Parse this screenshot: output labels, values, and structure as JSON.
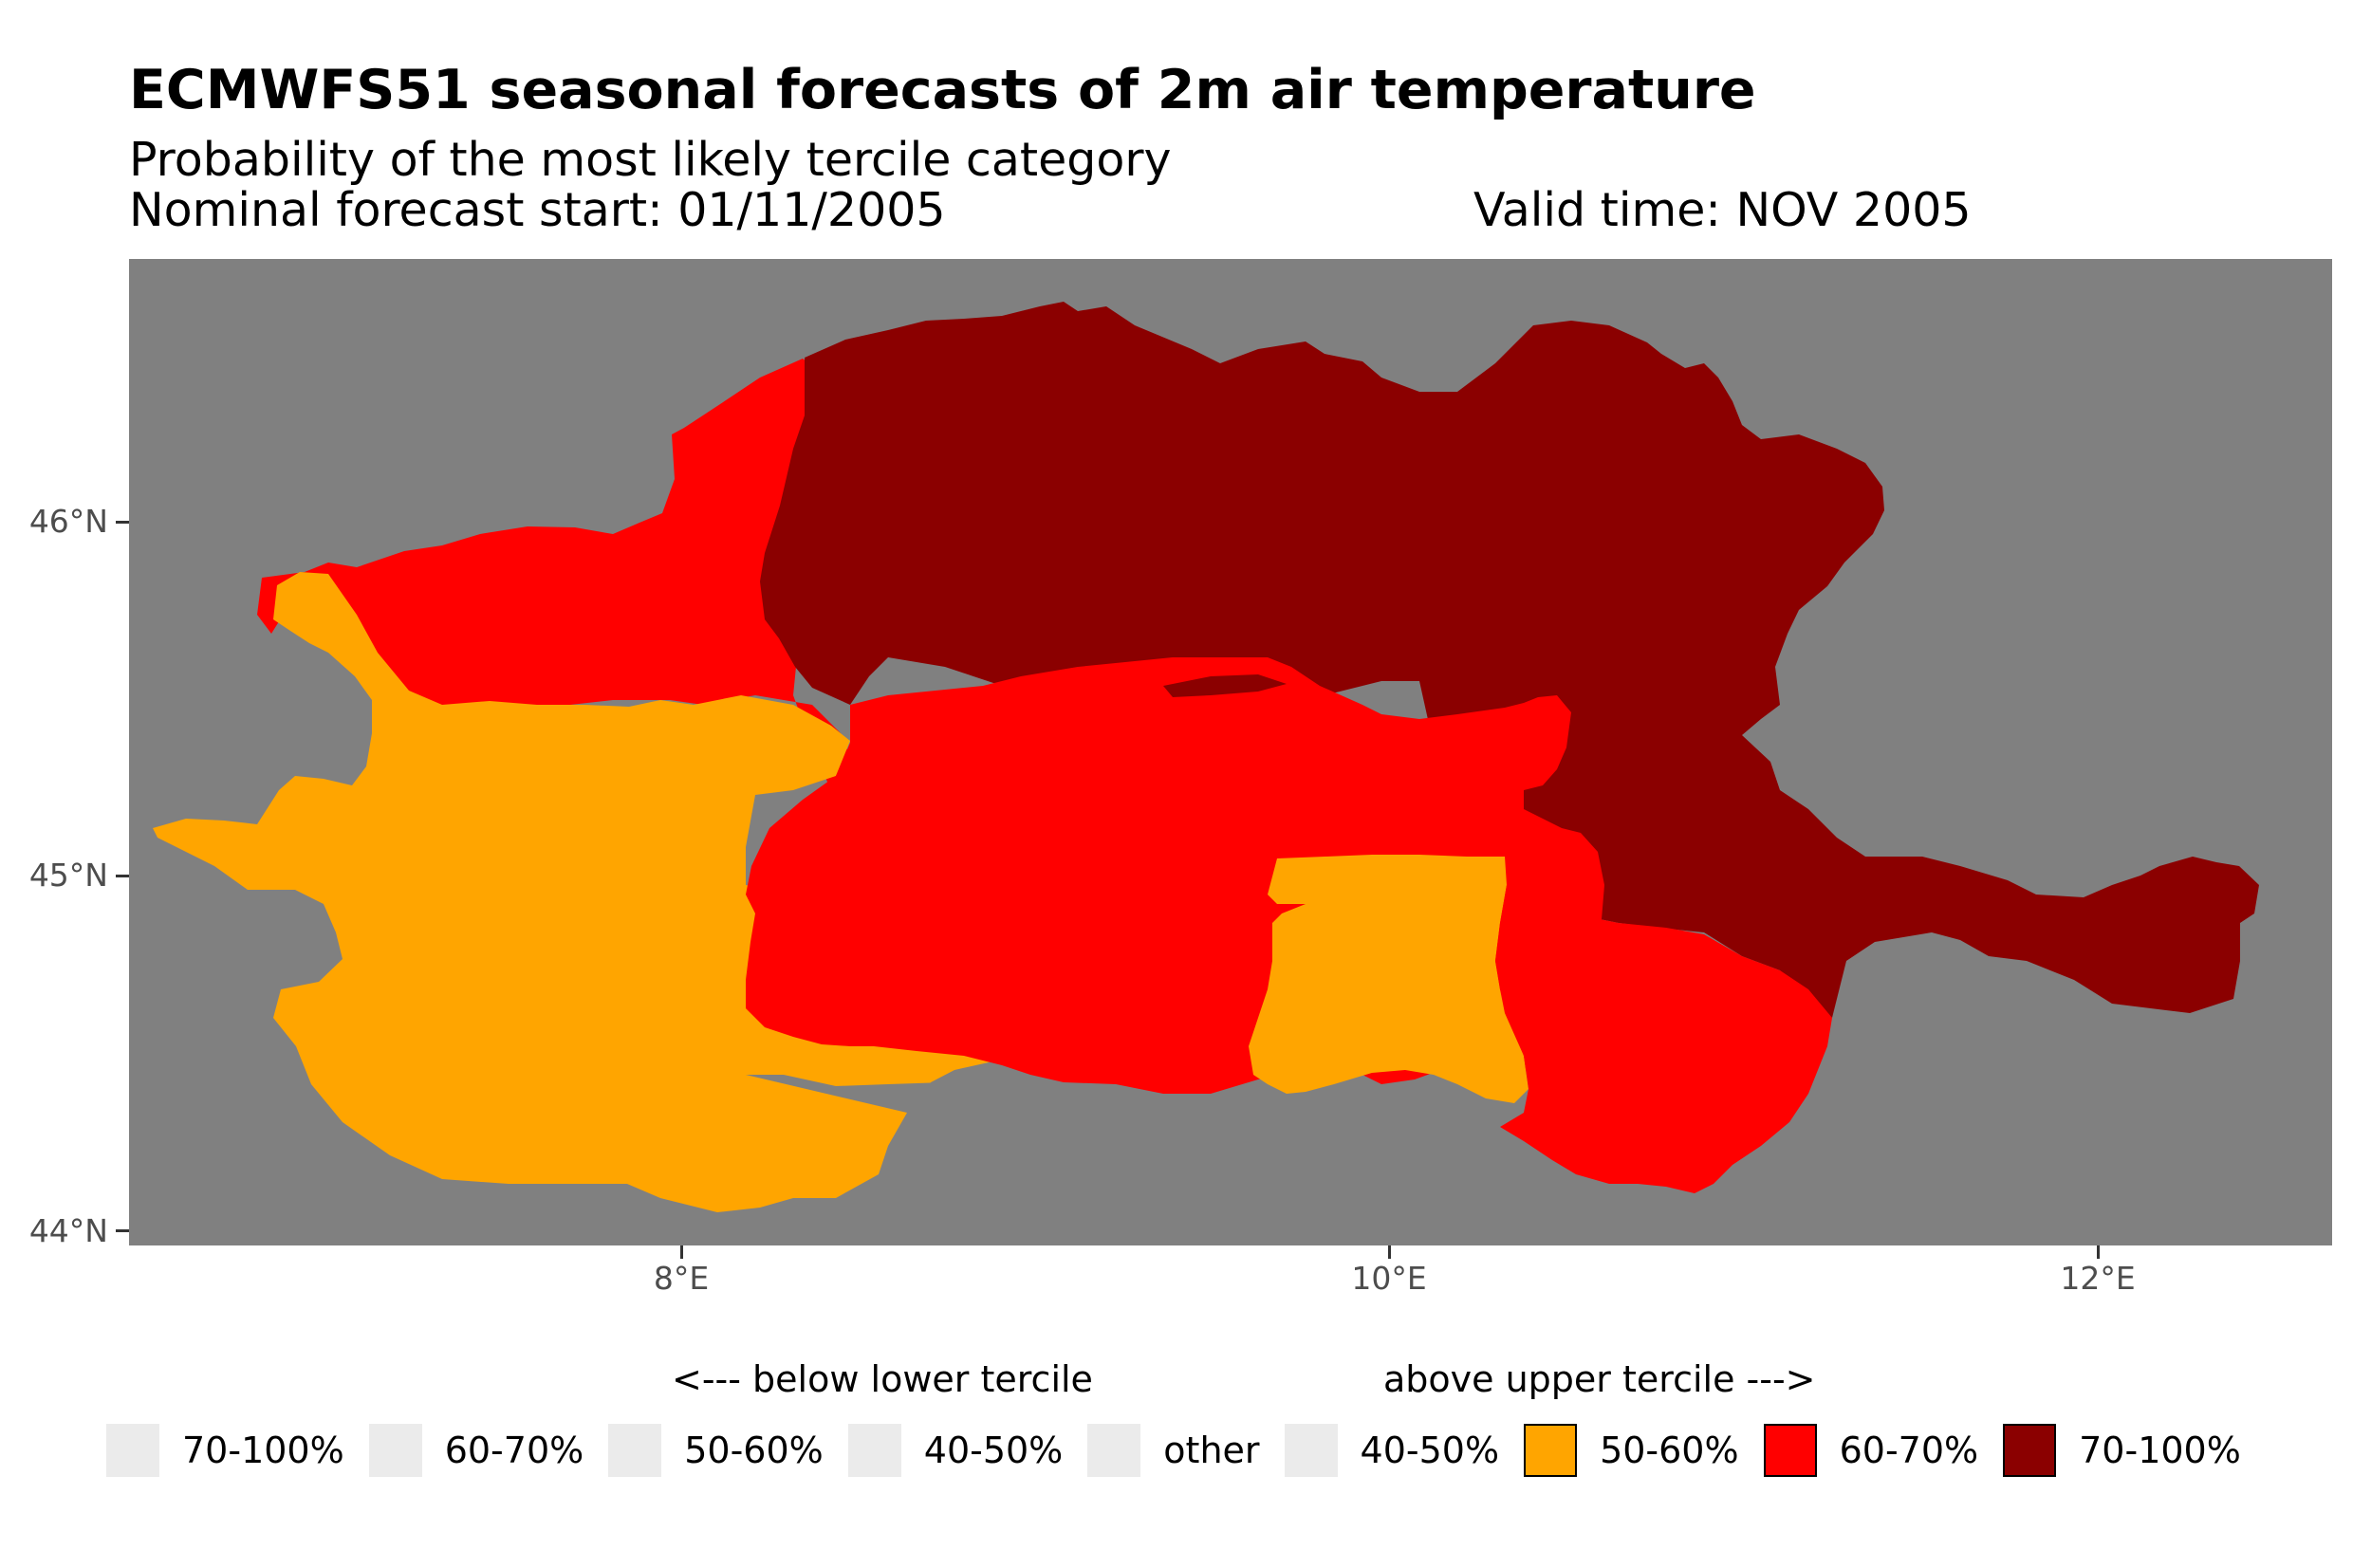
{
  "header": {
    "title": "ECMWFS51 seasonal forecasts of 2m air temperature",
    "subtitle": "Probability of the most likely tercile category",
    "forecast_start": "Nominal forecast start: 01/11/2005",
    "valid_time": "Valid time: NOV 2005"
  },
  "colors": {
    "ocean": "#808080",
    "above_50_60": "#FFA500",
    "above_60_70": "#FF0000",
    "above_70_100": "#8B0000",
    "empty_swatch": "#EBEBEB"
  },
  "axes": {
    "y_ticks": [
      "46°N",
      "45°N",
      "44°N"
    ],
    "x_ticks": [
      "8°E",
      "10°E",
      "12°E"
    ]
  },
  "legend": {
    "below_heading": "<--- below lower tercile",
    "above_heading": "above upper tercile --->",
    "items": [
      {
        "label": "70-100%",
        "color": "#EBEBEB"
      },
      {
        "label": "60-70%",
        "color": "#EBEBEB"
      },
      {
        "label": "50-60%",
        "color": "#EBEBEB"
      },
      {
        "label": "40-50%",
        "color": "#EBEBEB"
      },
      {
        "label": "other",
        "color": "#EBEBEB"
      },
      {
        "label": "40-50%",
        "color": "#EBEBEB"
      },
      {
        "label": "50-60%",
        "color": "#FFA500"
      },
      {
        "label": "60-70%",
        "color": "#FF0000"
      },
      {
        "label": "70-100%",
        "color": "#8B0000"
      }
    ]
  },
  "map_regions": [
    {
      "name": "west-orange-region",
      "category": "above upper tercile 50-60%",
      "color": "#FFA500"
    },
    {
      "name": "center-orange-region",
      "category": "above upper tercile 50-60%",
      "color": "#FFA500"
    },
    {
      "name": "northwest-red-region",
      "category": "above upper tercile 60-70%",
      "color": "#FF0000"
    },
    {
      "name": "central-red-region",
      "category": "above upper tercile 60-70%",
      "color": "#FF0000"
    },
    {
      "name": "southeast-red-region",
      "category": "above upper tercile 60-70%",
      "color": "#FF0000"
    },
    {
      "name": "north-darkred-region",
      "category": "above upper tercile 70-100%",
      "color": "#8B0000"
    },
    {
      "name": "east-darkred-region",
      "category": "above upper tercile 70-100%",
      "color": "#8B0000"
    }
  ]
}
